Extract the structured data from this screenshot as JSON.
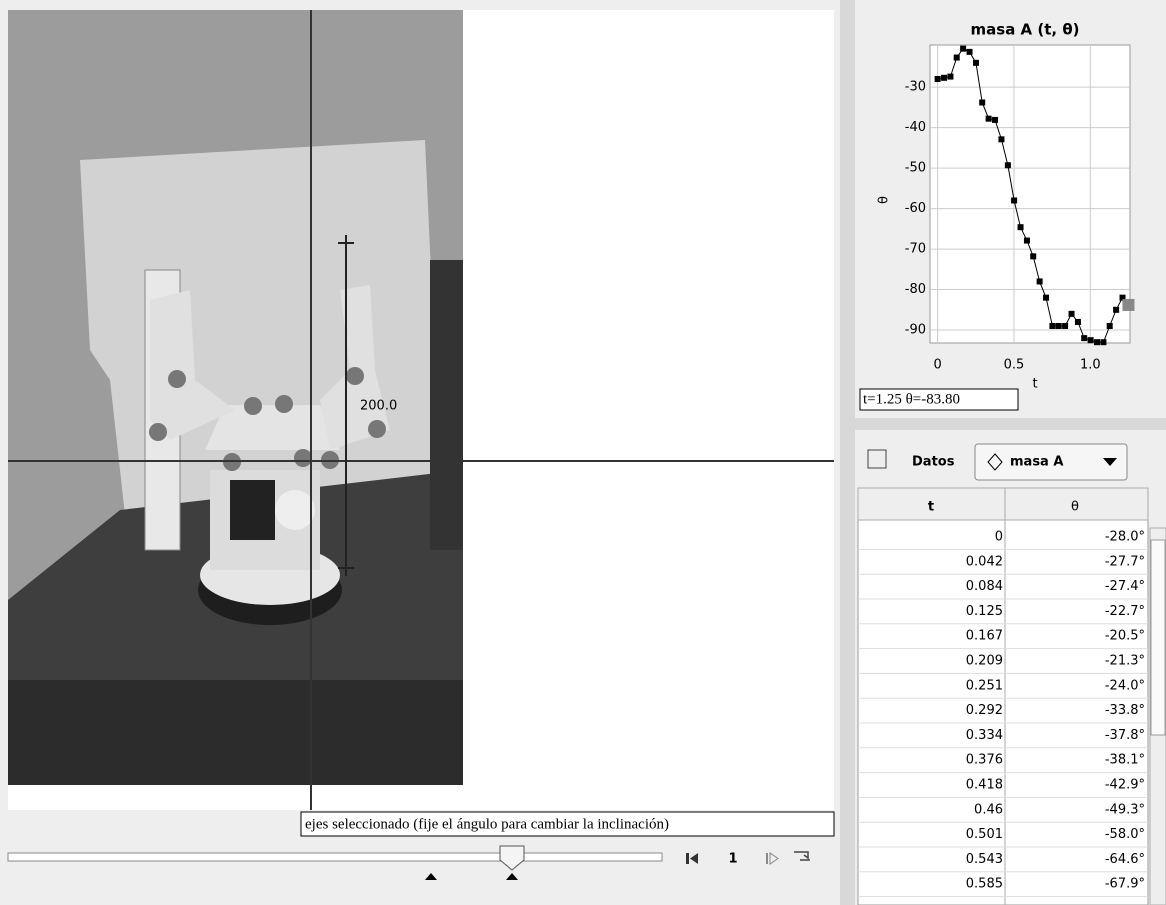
{
  "video": {
    "measure_label": "200.0",
    "tooltip": "ejes seleccionado (fije el ángulo para cambiar la inclinación)",
    "frame": "1"
  },
  "chart_data": {
    "type": "line",
    "title": "masa A (t, θ)",
    "x_label": "t",
    "y_label": "θ",
    "readout": "t=1.25  θ=-83.80",
    "x": [
      0,
      0.042,
      0.084,
      0.125,
      0.167,
      0.209,
      0.251,
      0.292,
      0.334,
      0.376,
      0.418,
      0.46,
      0.501,
      0.543,
      0.585,
      0.626,
      0.668,
      0.71,
      0.752,
      0.793,
      0.835,
      0.877,
      0.919,
      0.96,
      1.002,
      1.044,
      1.086,
      1.127,
      1.169,
      1.211,
      1.25
    ],
    "series": [
      {
        "name": "masa A",
        "color": "#000000",
        "values": [
          -28.0,
          -27.7,
          -27.4,
          -22.7,
          -20.5,
          -21.3,
          -24.0,
          -33.8,
          -37.8,
          -38.1,
          -42.9,
          -49.3,
          -58.0,
          -64.6,
          -67.9,
          -71.8,
          -78,
          -82,
          -89,
          -89,
          -89,
          -86,
          -88,
          -92,
          -92.5,
          -93,
          -93,
          -89,
          -85,
          -82,
          -83.8
        ]
      }
    ],
    "xlim": [
      -0.05,
      1.26
    ],
    "ylim": [
      -93.2,
      -19.6
    ],
    "xticks": [
      0,
      0.5,
      {
        "value": 1,
        "label": "1.0"
      }
    ],
    "yticks": [
      -30,
      -40,
      -50,
      -60,
      -70,
      -80,
      -90
    ],
    "grid": true
  },
  "toolbar": {
    "data_button": "Datos",
    "track_selector": "masa A"
  },
  "table": {
    "headers": [
      "t",
      "θ"
    ],
    "rows": [
      [
        "0",
        "-28.0°"
      ],
      [
        "0.042",
        "-27.7°"
      ],
      [
        "0.084",
        "-27.4°"
      ],
      [
        "0.125",
        "-22.7°"
      ],
      [
        "0.167",
        "-20.5°"
      ],
      [
        "0.209",
        "-21.3°"
      ],
      [
        "0.251",
        "-24.0°"
      ],
      [
        "0.292",
        "-33.8°"
      ],
      [
        "0.334",
        "-37.8°"
      ],
      [
        "0.376",
        "-38.1°"
      ],
      [
        "0.418",
        "-42.9°"
      ],
      [
        "0.46",
        "-49.3°"
      ],
      [
        "0.501",
        "-58.0°"
      ],
      [
        "0.543",
        "-64.6°"
      ],
      [
        "0.585",
        "-67.9°"
      ]
    ]
  }
}
